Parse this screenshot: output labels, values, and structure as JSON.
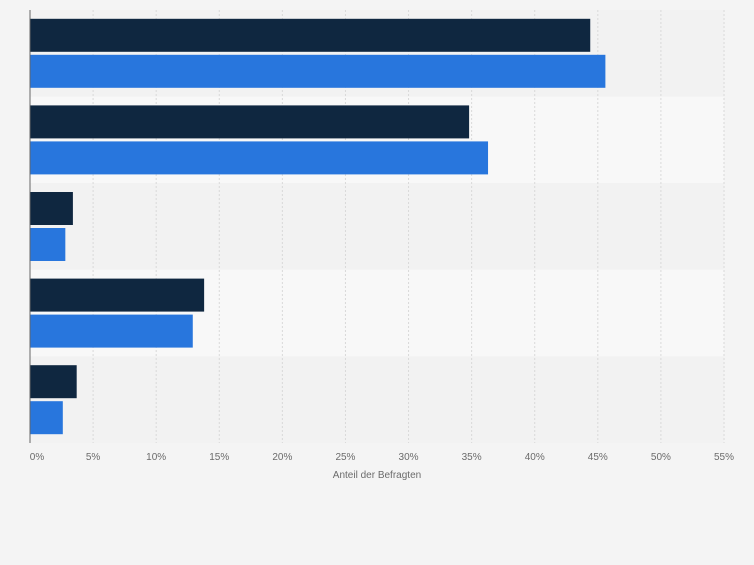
{
  "chart_data": {
    "type": "bar",
    "orientation": "horizontal",
    "categories": [
      "",
      "",
      "",
      "",
      ""
    ],
    "series": [
      {
        "values": [
          44.4,
          34.8,
          3.4,
          13.8,
          3.7
        ]
      },
      {
        "values": [
          45.6,
          36.3,
          2.8,
          12.9,
          2.6
        ]
      }
    ],
    "xlabel": "Anteil der Befragten",
    "xlim": [
      0,
      55
    ],
    "tick_labels": [
      "0%",
      "5%",
      "10%",
      "15%",
      "20%",
      "25%",
      "30%",
      "35%",
      "40%",
      "45%",
      "50%",
      "55%"
    ],
    "grid": true,
    "legend": false
  },
  "colors": {
    "series": [
      "#0f2740",
      "#2876dd"
    ],
    "band_a": "#f2f2f2",
    "band_b": "#f8f8f8",
    "grid": "#d9d9d9",
    "axis": "#666666",
    "text": "#6b6b6b"
  }
}
